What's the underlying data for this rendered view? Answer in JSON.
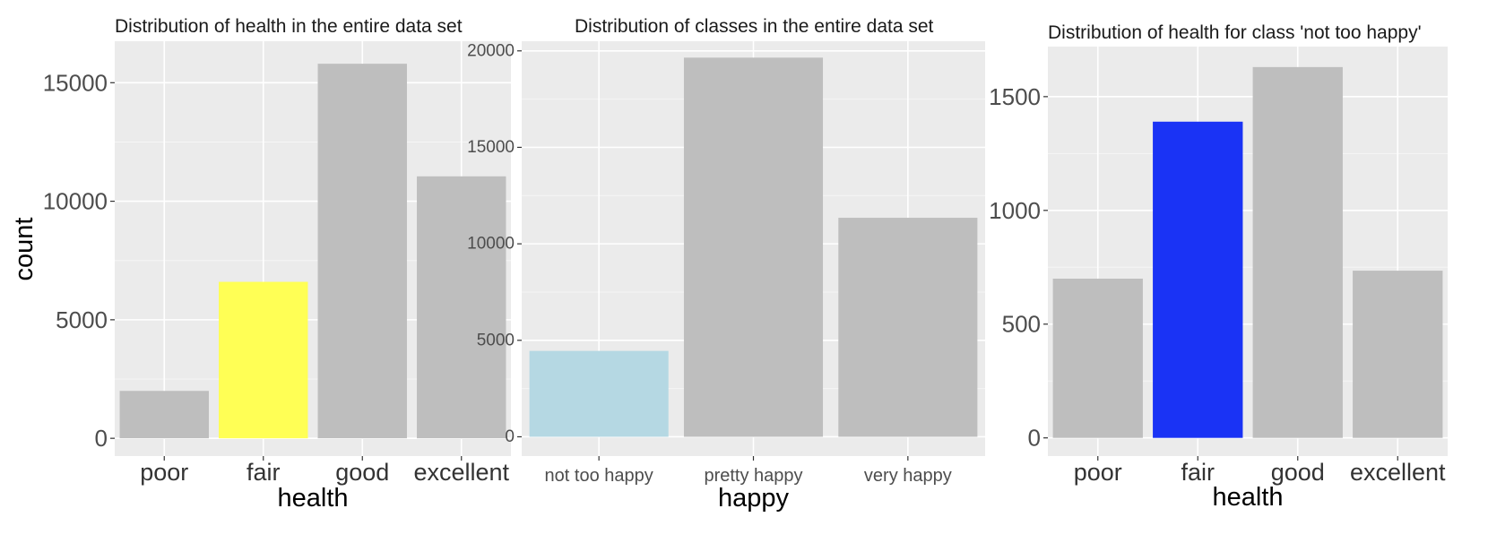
{
  "chart_data": [
    {
      "type": "bar",
      "title": "Distribution of health in the entire data set",
      "xlabel": "health",
      "ylabel": "count",
      "categories": [
        "poor",
        "fair",
        "good",
        "excellent"
      ],
      "values": [
        2000,
        6600,
        15800,
        11050
      ],
      "colors": [
        "#bebebe",
        "#ffff55",
        "#bebebe",
        "#bebebe"
      ],
      "ylim": [
        -750,
        16750
      ],
      "yticks": [
        0,
        5000,
        10000,
        15000
      ],
      "ytick_labels": [
        "0",
        "5000",
        "10000",
        "15000"
      ],
      "grid": true
    },
    {
      "type": "bar",
      "title": "Distribution of classes in the entire data set",
      "xlabel": "happy",
      "ylabel": "",
      "categories": [
        "not too happy",
        "pretty happy",
        "very happy"
      ],
      "values": [
        4450,
        19650,
        11350
      ],
      "colors": [
        "#b5d8e3",
        "#bebebe",
        "#bebebe"
      ],
      "ylim": [
        -1000,
        20500
      ],
      "yticks": [
        0,
        5000,
        10000,
        15000,
        20000
      ],
      "ytick_labels": [
        "0",
        "5000",
        "10000",
        "15000",
        "20000"
      ],
      "grid": true
    },
    {
      "type": "bar",
      "title": "Distribution of health for class 'not too happy'",
      "xlabel": "health",
      "ylabel": "",
      "categories": [
        "poor",
        "fair",
        "good",
        "excellent"
      ],
      "values": [
        700,
        1390,
        1630,
        735
      ],
      "colors": [
        "#bebebe",
        "#1a33f5",
        "#bebebe",
        "#bebebe"
      ],
      "ylim": [
        -80,
        1720
      ],
      "yticks": [
        0,
        500,
        1000,
        1500
      ],
      "ytick_labels": [
        "0",
        "500",
        "1000",
        "1500"
      ],
      "grid": true
    }
  ]
}
